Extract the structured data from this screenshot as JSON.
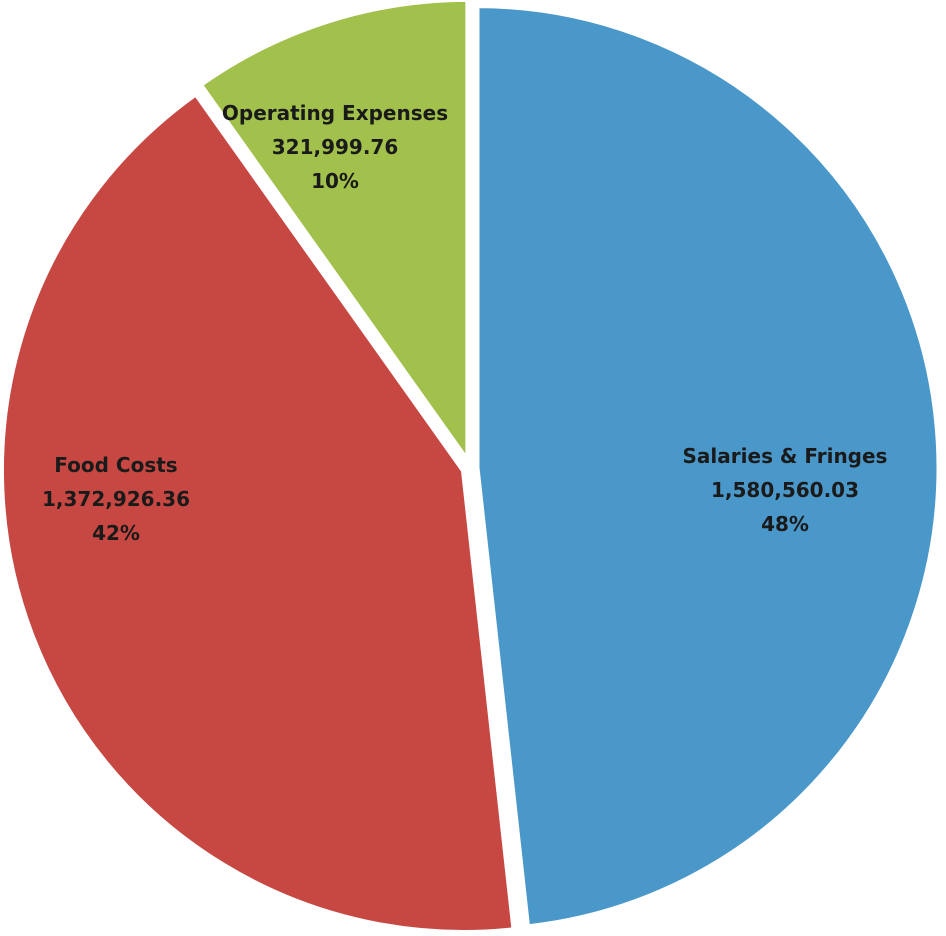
{
  "chart_data": {
    "type": "pie",
    "title": "",
    "slices": [
      {
        "name": "Salaries & Fringes",
        "value": 1580560.03,
        "value_label": "1,580,560.03",
        "percent_label": "48%",
        "color": "#4a97c9"
      },
      {
        "name": "Food Costs",
        "value": 1372926.36,
        "value_label": "1,372,926.36",
        "percent_label": "42%",
        "color": "#c74843"
      },
      {
        "name": "Operating Expenses",
        "value": 321999.76,
        "value_label": "321,999.76",
        "percent_label": "10%",
        "color": "#a2c14c"
      }
    ],
    "start_position": "top",
    "direction": "clockwise",
    "labels": "inside-slices",
    "legend": "none",
    "exploded": true
  }
}
